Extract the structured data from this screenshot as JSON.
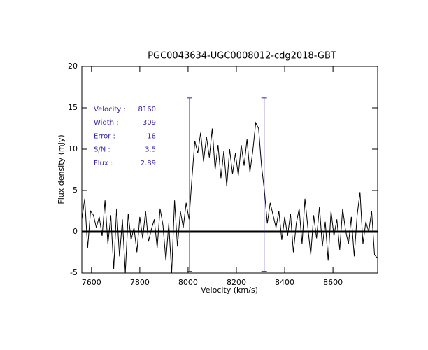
{
  "chart_data": {
    "type": "line",
    "title": "PGC0043634-UGC0008012-cdg2018-GBT",
    "xlabel": "Velocity (km/s)",
    "ylabel": "Flux density (mJy)",
    "xlim": [
      7560,
      8785
    ],
    "ylim": [
      -5,
      20
    ],
    "xticks": [
      7600,
      7800,
      8000,
      8200,
      8400,
      8600
    ],
    "yticks": [
      -5,
      0,
      5,
      10,
      15,
      20
    ],
    "x": [
      7560,
      7572,
      7584,
      7596,
      7608,
      7620,
      7632,
      7644,
      7656,
      7668,
      7680,
      7692,
      7704,
      7716,
      7728,
      7740,
      7752,
      7764,
      7776,
      7788,
      7800,
      7812,
      7824,
      7836,
      7848,
      7860,
      7872,
      7884,
      7896,
      7908,
      7920,
      7932,
      7944,
      7956,
      7968,
      7980,
      7992,
      8004,
      8016,
      8028,
      8040,
      8052,
      8064,
      8076,
      8088,
      8100,
      8112,
      8124,
      8136,
      8148,
      8160,
      8172,
      8184,
      8196,
      8208,
      8220,
      8232,
      8244,
      8256,
      8268,
      8280,
      8292,
      8304,
      8316,
      8328,
      8340,
      8352,
      8364,
      8376,
      8388,
      8400,
      8412,
      8424,
      8436,
      8448,
      8460,
      8472,
      8484,
      8496,
      8508,
      8520,
      8532,
      8544,
      8556,
      8568,
      8580,
      8592,
      8604,
      8616,
      8628,
      8640,
      8652,
      8664,
      8676,
      8688,
      8700,
      8712,
      8724,
      8736,
      8748,
      8760,
      8772,
      8784
    ],
    "series": [
      {
        "color": "#000000",
        "values": [
          1.5,
          4.0,
          -2.0,
          2.5,
          2.0,
          0.5,
          1.8,
          -0.5,
          3.8,
          -1.5,
          2.0,
          -4.5,
          2.8,
          -3.0,
          1.5,
          -5.0,
          2.2,
          -1.0,
          0.5,
          -2.5,
          1.8,
          -0.8,
          2.5,
          -1.2,
          0.3,
          1.5,
          -2.0,
          2.8,
          0.8,
          -3.5,
          1.0,
          -5.0,
          3.8,
          -1.8,
          2.5,
          0.5,
          3.5,
          1.5,
          6.5,
          11.0,
          9.5,
          12.0,
          8.5,
          11.5,
          9.0,
          12.5,
          7.5,
          10.5,
          6.5,
          9.8,
          5.5,
          10.0,
          7.0,
          9.5,
          6.8,
          10.5,
          8.0,
          11.2,
          7.2,
          9.8,
          13.2,
          12.5,
          8.0,
          5.0,
          1.0,
          3.5,
          2.0,
          0.5,
          2.5,
          -1.0,
          1.8,
          -0.5,
          2.2,
          -2.5,
          1.0,
          2.8,
          -1.5,
          4.0,
          0.5,
          -2.8,
          2.0,
          -0.8,
          3.0,
          -1.8,
          1.2,
          -3.5,
          2.5,
          -0.5,
          1.5,
          -2.2,
          2.8,
          0.2,
          -1.5,
          1.8,
          -3.0,
          2.0,
          4.8,
          -1.5,
          1.2,
          0.0,
          2.5,
          -2.8,
          -3.2
        ]
      }
    ],
    "hline": 4.7,
    "hline_color": "#00dd00",
    "zero_line": 0,
    "vlines": [
      8006,
      8315
    ],
    "vline_range": [
      -4.8,
      16.2
    ],
    "vline_color": "#3a20b0",
    "annotations": [
      {
        "label": "Velocity :",
        "value": 8160
      },
      {
        "label": "Width :",
        "value": 309
      },
      {
        "label": "Error :",
        "value": 18
      },
      {
        "label": "S/N :",
        "value": 3.5
      },
      {
        "label": "Flux :",
        "value": 2.89
      }
    ],
    "annotation_color": "#3a20b0"
  }
}
